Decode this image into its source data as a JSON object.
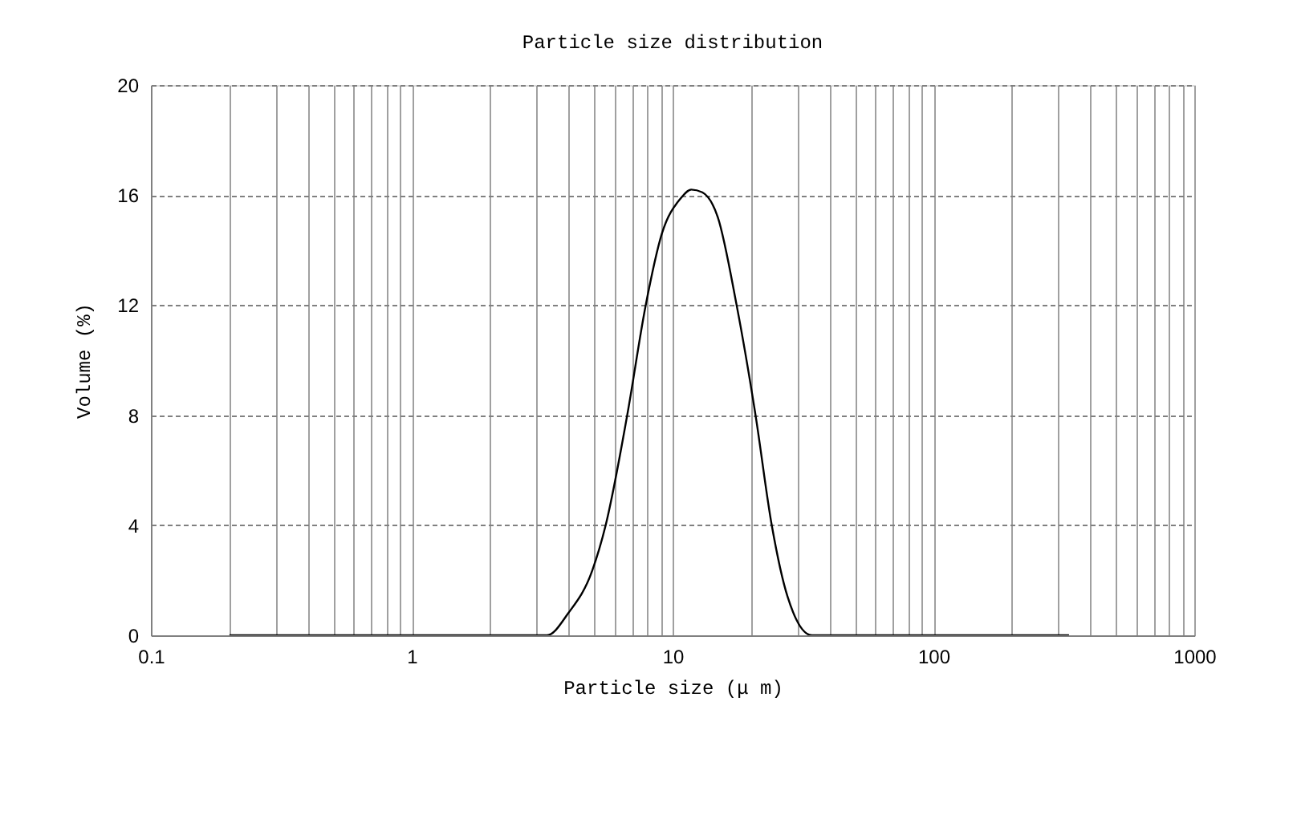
{
  "chart_data": {
    "type": "line",
    "title": "Particle size distribution",
    "xlabel": "Particle size (μ m)",
    "ylabel": "Volume (%)",
    "x": [
      0.2,
      1,
      3.3,
      3.98,
      4.92,
      5.54,
      6.7,
      7.89,
      9.1,
      10.7,
      11.8,
      13.0,
      14.9,
      17.6,
      20.8,
      24.0,
      27.6,
      34.2,
      100,
      331
    ],
    "series": [
      {
        "color": "#000000",
        "values": [
          0,
          0,
          0,
          0.8,
          2.35,
          4.0,
          8.0,
          12.0,
          14.6,
          15.86,
          16.2,
          16.1,
          15.2,
          12.0,
          8.0,
          4.0,
          1.4,
          0,
          0,
          0
        ]
      }
    ],
    "log": "x",
    "xlim": [
      0.1,
      1000
    ],
    "ylim": [
      0,
      20
    ],
    "xticks": [
      0.1,
      {
        "value": 0.2,
        "label": null
      },
      {
        "value": 0.3,
        "label": null
      },
      {
        "value": 0.4,
        "label": null
      },
      {
        "value": 0.5,
        "label": null
      },
      {
        "value": 0.6,
        "label": null
      },
      {
        "value": 0.7,
        "label": null
      },
      {
        "value": 0.8,
        "label": null
      },
      {
        "value": 0.9,
        "label": null
      },
      1,
      {
        "value": 2,
        "label": null
      },
      {
        "value": 3,
        "label": null
      },
      {
        "value": 4,
        "label": null
      },
      {
        "value": 5,
        "label": null
      },
      {
        "value": 6,
        "label": null
      },
      {
        "value": 7,
        "label": null
      },
      {
        "value": 8,
        "label": null
      },
      {
        "value": 9,
        "label": null
      },
      10,
      {
        "value": 20,
        "label": null
      },
      {
        "value": 30,
        "label": null
      },
      {
        "value": 40,
        "label": null
      },
      {
        "value": 50,
        "label": null
      },
      {
        "value": 60,
        "label": null
      },
      {
        "value": 70,
        "label": null
      },
      {
        "value": 80,
        "label": null
      },
      {
        "value": 90,
        "label": null
      },
      100,
      {
        "value": 200,
        "label": null
      },
      {
        "value": 300,
        "label": null
      },
      {
        "value": 400,
        "label": null
      },
      {
        "value": 500,
        "label": null
      },
      {
        "value": 600,
        "label": null
      },
      {
        "value": 700,
        "label": null
      },
      {
        "value": 800,
        "label": null
      },
      {
        "value": 900,
        "label": null
      },
      1000
    ],
    "yticks": [
      0,
      4,
      8,
      12,
      16,
      20
    ],
    "grid": true,
    "marker": "none",
    "line_style": "solid"
  }
}
